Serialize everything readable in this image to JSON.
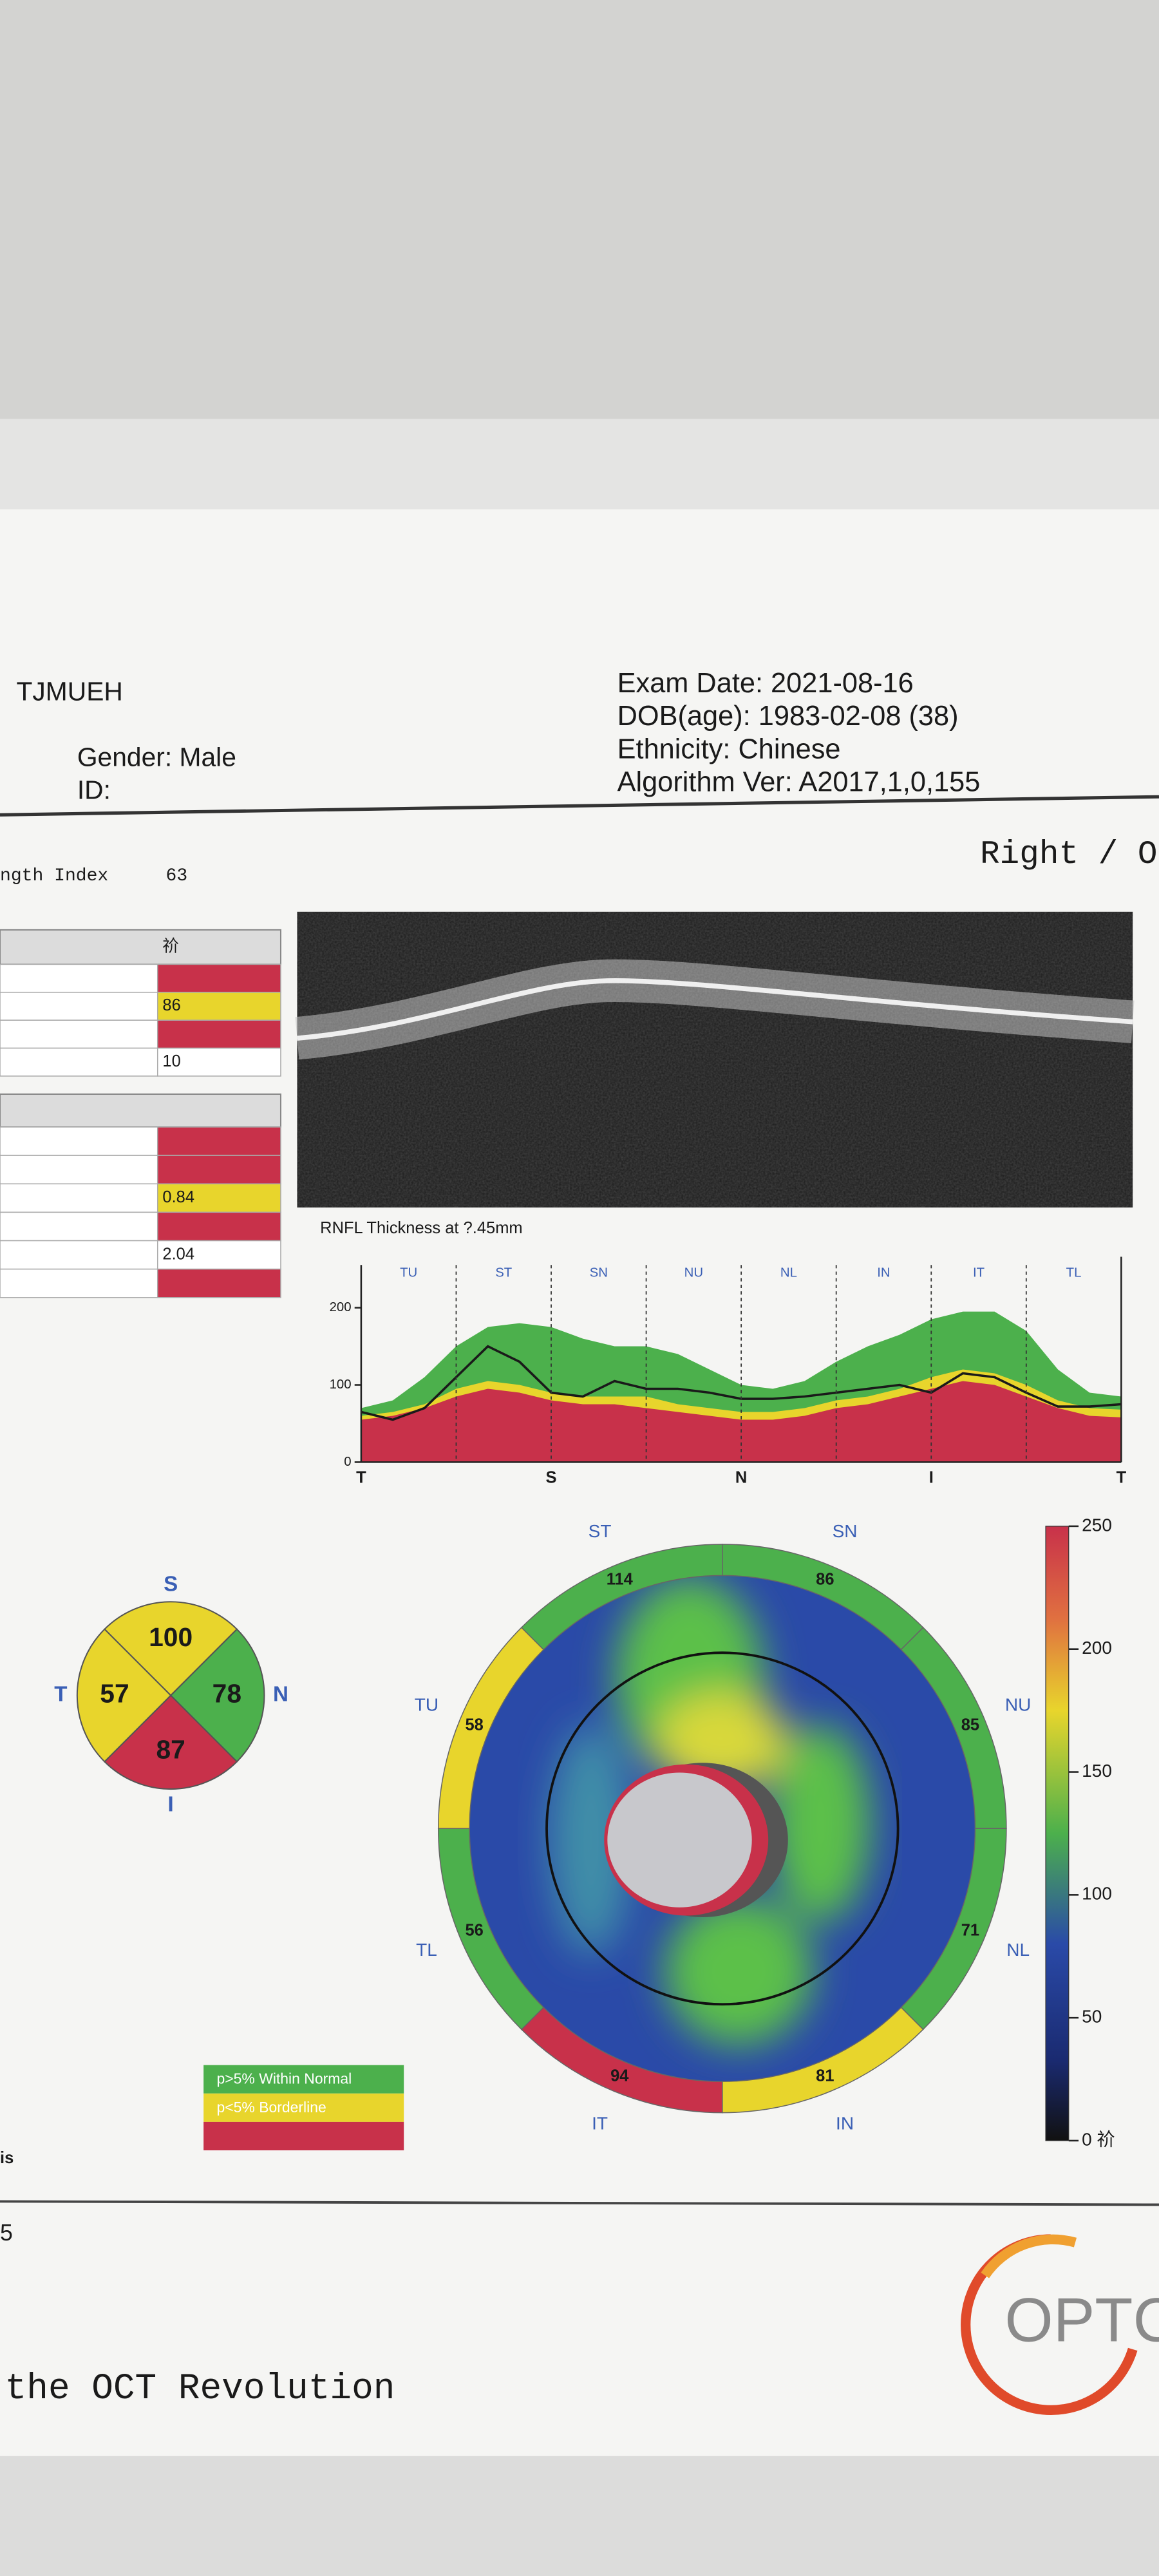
{
  "header": {
    "institution": "TJMUEH",
    "gender": "Gender: Male",
    "id": "ID:",
    "exam_date": "Exam Date: 2021-08-16",
    "dob": "DOB(age): 1983-02-08 (38)",
    "ethnicity": "Ethnicity: Chinese",
    "algorithm": "Algorithm Ver: A2017,1,0,155",
    "signal_label": "ngth Index",
    "signal_value": 63,
    "eye": "Right / O"
  },
  "table1": {
    "header": "祄",
    "rows": [
      {
        "color": "#c8314a"
      },
      {
        "value": 86,
        "color": "#e8d52c"
      },
      {
        "color": "#c8314a"
      },
      {
        "value": 10,
        "color": "#ffffff"
      }
    ]
  },
  "table2": {
    "rows": [
      {
        "color": "#c8314a"
      },
      {
        "color": "#c8314a"
      },
      {
        "value": 0.84,
        "color": "#e8d52c"
      },
      {
        "color": "#c8314a"
      },
      {
        "value": 2.04,
        "color": "#ffffff"
      },
      {
        "color": "#c8314a"
      }
    ]
  },
  "rnfl": {
    "title": "RNFL Thickness at ?.45mm",
    "type": "area",
    "sectors": [
      "TU",
      "ST",
      "SN",
      "NU",
      "NL",
      "IN",
      "IT",
      "TL"
    ],
    "x_labels": [
      "T",
      "S",
      "N",
      "I",
      "T"
    ],
    "ylim": [
      0,
      250
    ],
    "yticks": [
      0,
      100,
      200
    ],
    "bands": [
      {
        "color": "#4cb04c",
        "values": [
          70,
          80,
          110,
          150,
          175,
          180,
          175,
          160,
          150,
          150,
          140,
          120,
          100,
          95,
          105,
          130,
          150,
          165,
          185,
          195,
          195,
          170,
          120,
          90,
          85
        ]
      },
      {
        "color": "#e8d52c",
        "values": [
          60,
          65,
          75,
          95,
          105,
          100,
          90,
          85,
          85,
          85,
          75,
          70,
          65,
          65,
          70,
          80,
          85,
          95,
          110,
          120,
          115,
          100,
          80,
          70,
          68
        ]
      },
      {
        "color": "#c8314a",
        "values": [
          55,
          60,
          70,
          85,
          95,
          90,
          80,
          75,
          75,
          70,
          65,
          60,
          55,
          55,
          60,
          70,
          75,
          85,
          95,
          105,
          100,
          85,
          70,
          60,
          58
        ]
      }
    ],
    "patient": {
      "color": "#1a1a1a",
      "values": [
        65,
        55,
        70,
        110,
        150,
        130,
        90,
        85,
        105,
        95,
        95,
        90,
        82,
        82,
        85,
        90,
        95,
        100,
        90,
        115,
        110,
        90,
        72,
        72,
        75
      ]
    }
  },
  "quadrant": {
    "sectors": [
      {
        "label": "S",
        "value": 100,
        "color": "#e8d52c"
      },
      {
        "label": "N",
        "value": 78,
        "color": "#4cb04c"
      },
      {
        "label": "I",
        "value": 87,
        "color": "#c8314a"
      },
      {
        "label": "T",
        "value": 57,
        "color": "#e8d52c"
      }
    ]
  },
  "clock": {
    "sectors": [
      {
        "label": "SN",
        "value": 86,
        "color": "#4cb04c"
      },
      {
        "label": "NU",
        "value": 85,
        "color": "#4cb04c"
      },
      {
        "label": "NL",
        "value": 71,
        "color": "#4cb04c"
      },
      {
        "label": "IN",
        "value": 81,
        "color": "#e8d52c"
      },
      {
        "label": "IT",
        "value": 94,
        "color": "#c8314a"
      },
      {
        "label": "TL",
        "value": 56,
        "color": "#4cb04c"
      },
      {
        "label": "TU",
        "value": 58,
        "color": "#e8d52c"
      },
      {
        "label": "ST",
        "value": 114,
        "color": "#4cb04c"
      }
    ]
  },
  "colorbar": {
    "ylim": [
      0,
      250
    ],
    "ticks": [
      250,
      200,
      150,
      100,
      50,
      {
        "value": 0,
        "label": "0 祄"
      }
    ]
  },
  "legend": [
    {
      "label": "p>5% Within Normal",
      "color": "#4cb04c"
    },
    {
      "label": "p<5% Borderline",
      "color": "#e8d52c"
    },
    {
      "color": "#c8314a"
    }
  ],
  "footer": {
    "fragment1": "is",
    "fragment2": "5",
    "tagline": "the OCT Revolution",
    "logo": "OPTC"
  }
}
